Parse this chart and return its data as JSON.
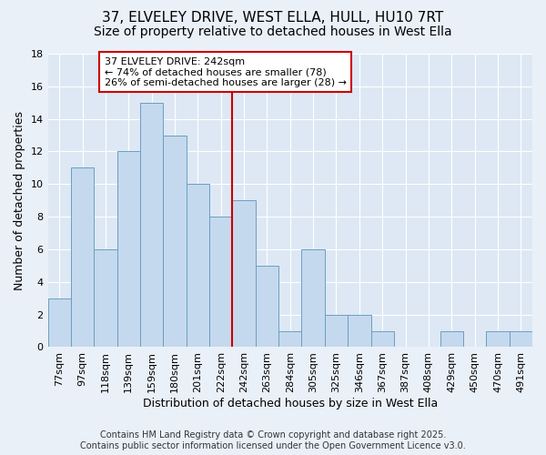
{
  "title": "37, ELVELEY DRIVE, WEST ELLA, HULL, HU10 7RT",
  "subtitle": "Size of property relative to detached houses in West Ella",
  "xlabel": "Distribution of detached houses by size in West Ella",
  "ylabel": "Number of detached properties",
  "bin_labels": [
    "77sqm",
    "97sqm",
    "118sqm",
    "139sqm",
    "159sqm",
    "180sqm",
    "201sqm",
    "222sqm",
    "242sqm",
    "263sqm",
    "284sqm",
    "305sqm",
    "325sqm",
    "346sqm",
    "367sqm",
    "387sqm",
    "408sqm",
    "429sqm",
    "450sqm",
    "470sqm",
    "491sqm"
  ],
  "bar_values": [
    3,
    11,
    6,
    12,
    15,
    13,
    10,
    8,
    9,
    5,
    1,
    6,
    2,
    2,
    1,
    0,
    0,
    1,
    0,
    1,
    1
  ],
  "bar_color": "#c5d9ee",
  "bar_edge_color": "#6a9fc0",
  "vline_index": 8,
  "vline_color": "#cc0000",
  "annotation_text": "37 ELVELEY DRIVE: 242sqm\n← 74% of detached houses are smaller (78)\n26% of semi-detached houses are larger (28) →",
  "annotation_box_color": "#ffffff",
  "annotation_border_color": "#cc0000",
  "ylim": [
    0,
    18
  ],
  "yticks": [
    0,
    2,
    4,
    6,
    8,
    10,
    12,
    14,
    16,
    18
  ],
  "footer_text": "Contains HM Land Registry data © Crown copyright and database right 2025.\nContains public sector information licensed under the Open Government Licence v3.0.",
  "background_color": "#eaf0f8",
  "plot_background_color": "#dde8f4",
  "grid_color": "#ffffff",
  "title_fontsize": 11,
  "subtitle_fontsize": 10,
  "label_fontsize": 9,
  "tick_fontsize": 8,
  "footer_fontsize": 7,
  "annotation_fontsize": 8
}
